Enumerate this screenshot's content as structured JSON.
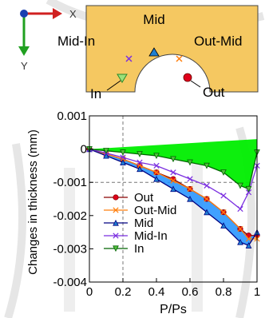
{
  "diagram": {
    "axis_x_label": "X",
    "axis_y_label": "Y",
    "plate_color": "#f5c861",
    "points": [
      {
        "name": "Mid",
        "label": "Mid",
        "marker": "triangle",
        "color": "#1f7fd0"
      },
      {
        "name": "Mid-In",
        "label": "Mid-In",
        "marker": "x",
        "color": "#7b2fe0"
      },
      {
        "name": "Out-Mid",
        "label": "Out-Mid",
        "marker": "x",
        "color": "#ff7f0e"
      },
      {
        "name": "In",
        "label": "In",
        "marker": "triangle-down",
        "color": "#6dbf3f"
      },
      {
        "name": "Out",
        "label": "Out",
        "marker": "circle",
        "color": "#e0001b"
      }
    ]
  },
  "chart_data": {
    "type": "line",
    "xlabel": "P/Ps",
    "ylabel": "Changes in thickness (mm)",
    "xlim": [
      0,
      1
    ],
    "ylim": [
      -0.004,
      0.001
    ],
    "xticks": [
      0,
      0.2,
      0.4,
      0.6,
      0.8,
      1
    ],
    "xtick_labels": [
      "0",
      "0.2",
      "0.4",
      "0.6",
      "0.8",
      "1"
    ],
    "yticks": [
      0.001,
      0,
      -0.001,
      -0.002,
      -0.003,
      -0.004
    ],
    "ytick_labels": [
      "0.001",
      "0",
      "-0.001",
      "-0.002",
      "-0.003",
      "-0.004"
    ],
    "grid": "dashed vertical at x=0.2, horizontal at y=-0.001",
    "legend_position": "lower-left",
    "x": [
      0,
      0.1,
      0.2,
      0.3,
      0.4,
      0.5,
      0.6,
      0.7,
      0.8,
      0.9,
      0.95,
      1
    ],
    "series": [
      {
        "name": "Out",
        "color": "#8b0000",
        "marker": "circle",
        "marker_fill": "#e0001b",
        "values": [
          0,
          -0.00015,
          -0.0003,
          -0.0005,
          -0.0007,
          -0.0009,
          -0.0012,
          -0.0015,
          -0.0019,
          -0.0024,
          -0.0026,
          -0.0026
        ]
      },
      {
        "name": "Out-Mid",
        "color": "#ff7f0e",
        "marker": "x",
        "marker_fill": "#ff7f0e",
        "values": [
          0,
          -0.00015,
          -0.0003,
          -0.0005,
          -0.0007,
          -0.00095,
          -0.0012,
          -0.0015,
          -0.0019,
          -0.0024,
          -0.0027,
          -0.0027
        ]
      },
      {
        "name": "Mid",
        "color": "#000080",
        "marker": "triangle",
        "marker_fill": "#1f7fd0",
        "values": [
          0,
          -0.0002,
          -0.0004,
          -0.0006,
          -0.0009,
          -0.0012,
          -0.0015,
          -0.0019,
          -0.0023,
          -0.0028,
          -0.0029,
          -0.0025
        ]
      },
      {
        "name": "Mid-In",
        "color": "#7b2fe0",
        "marker": "x",
        "marker_fill": "#7b2fe0",
        "values": [
          0,
          -0.00012,
          -0.00025,
          -0.0004,
          -0.0005,
          -0.0007,
          -0.0009,
          -0.0011,
          -0.0014,
          -0.0018,
          -0.0013,
          -0.0005
        ]
      },
      {
        "name": "In",
        "color": "#006400",
        "marker": "triangle-down",
        "marker_fill": "#55c040",
        "values": [
          0,
          -5e-05,
          -0.0001,
          -0.00015,
          -0.0002,
          -0.0003,
          -0.0004,
          -0.0005,
          -0.0007,
          -0.0011,
          -0.0012,
          -0.0001
        ]
      }
    ],
    "band": {
      "name": "In",
      "color": "#00ee00",
      "upper_end": 0.0003
    },
    "band2": {
      "name": "Mid",
      "color": "#1e90ff"
    }
  }
}
